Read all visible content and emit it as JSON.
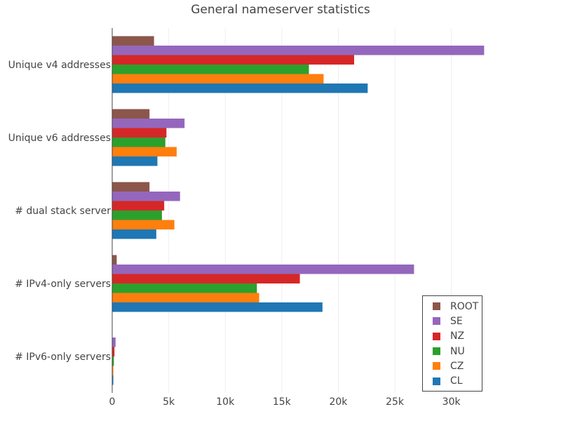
{
  "chart_data": {
    "type": "bar",
    "orientation": "horizontal",
    "title": "General nameserver statistics",
    "xlabel": "",
    "ylabel": "",
    "xlim": [
      0,
      33000
    ],
    "x_ticks": [
      0,
      5000,
      10000,
      15000,
      20000,
      25000,
      30000
    ],
    "x_tick_labels": [
      "0",
      "5k",
      "10k",
      "15k",
      "20k",
      "25k",
      "30k"
    ],
    "grid": true,
    "legend_position": "bottom-right",
    "categories": [
      "Unique v4 addresses",
      "Unique v6 addresses",
      "# dual stack server",
      "# IPv4-only servers",
      "# IPv6-only servers"
    ],
    "series": [
      {
        "name": "CL",
        "color": "#1f77b4",
        "values": [
          22600,
          4000,
          3900,
          18600,
          100
        ]
      },
      {
        "name": "CZ",
        "color": "#ff7f0e",
        "values": [
          18700,
          5700,
          5500,
          13000,
          100
        ]
      },
      {
        "name": "NU",
        "color": "#2ca02c",
        "values": [
          17400,
          4700,
          4400,
          12800,
          150
        ]
      },
      {
        "name": "NZ",
        "color": "#d62728",
        "values": [
          21400,
          4800,
          4600,
          16600,
          200
        ]
      },
      {
        "name": "SE",
        "color": "#9467bd",
        "values": [
          32900,
          6400,
          6000,
          26700,
          300
        ]
      },
      {
        "name": "ROOT",
        "color": "#8c564b",
        "values": [
          3700,
          3300,
          3300,
          400,
          0
        ]
      }
    ]
  }
}
